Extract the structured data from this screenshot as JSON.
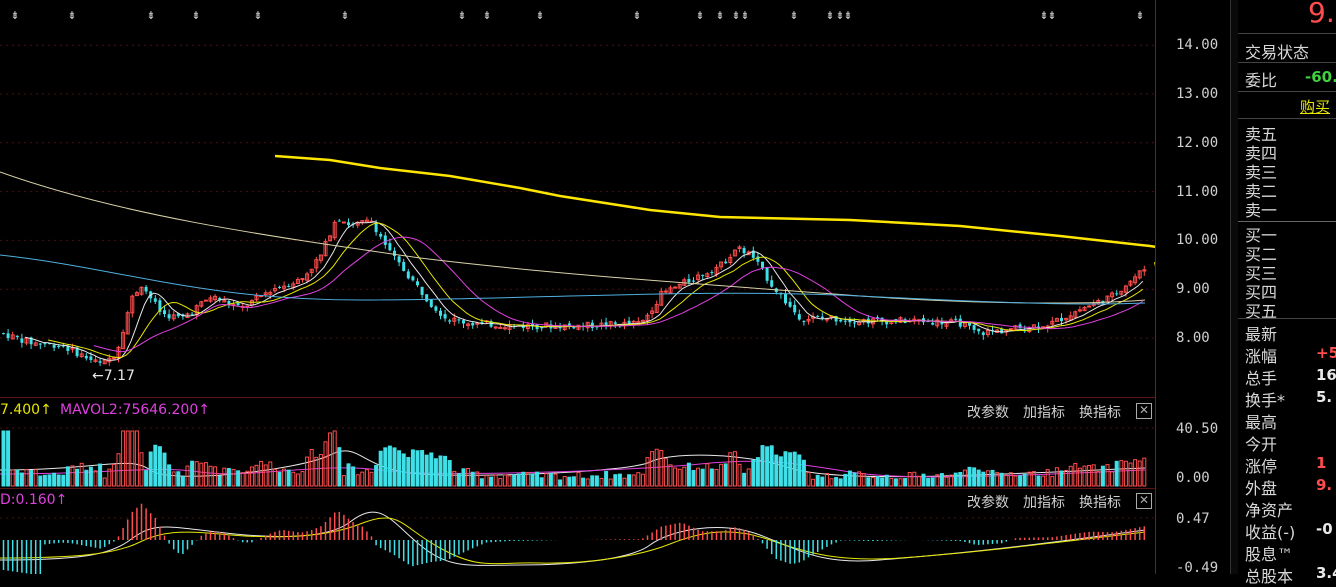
{
  "price_axis": {
    "ticks": [
      "14.00",
      "13.00",
      "12.00",
      "11.00",
      "10.00",
      "9.00",
      "8.00"
    ]
  },
  "vol_axis": {
    "ticks": [
      "40.50",
      "0.00"
    ]
  },
  "macd_axis": {
    "ticks": [
      "0.47",
      "-0.49"
    ]
  },
  "main_chart": {
    "low_marker": "7.17",
    "markers": "⇟"
  },
  "volume_pane": {
    "mavol1": "7.400",
    "mavol2": "MAVOL2:75646.200",
    "arrow": "↑",
    "buttons": {
      "params": "改参数",
      "add": "加指标",
      "swap": "换指标"
    },
    "close": "✕"
  },
  "macd_pane": {
    "label": "D:0.160",
    "arrow": "↑",
    "buttons": {
      "params": "改参数",
      "add": "加指标",
      "swap": "换指标"
    },
    "close": "✕"
  },
  "right_panel": {
    "price_partial": "9.",
    "trade_status": "交易状态",
    "wei_bi": "委比",
    "wei_bi_val": "-60.",
    "buy_btn": "购买",
    "sell_rows": [
      "卖五",
      "卖四",
      "卖三",
      "卖二",
      "卖一"
    ],
    "buy_rows": [
      "买一",
      "买二",
      "买三",
      "买四",
      "买五"
    ],
    "stats": [
      {
        "label": "最新",
        "val": ""
      },
      {
        "label": "涨幅",
        "val": "+5."
      },
      {
        "label": "总手",
        "val": "16."
      },
      {
        "label": "换手*",
        "val": "5."
      },
      {
        "label": "最高",
        "val": ""
      },
      {
        "label": "今开",
        "val": ""
      },
      {
        "label": "涨停",
        "val": "1"
      },
      {
        "label": "外盘",
        "val": "9."
      },
      {
        "label": "净资产",
        "val": ""
      },
      {
        "label": "收益(-)",
        "val": "-0"
      },
      {
        "label": "股息™",
        "val": ""
      },
      {
        "label": "总股本",
        "val": "3.4"
      }
    ]
  },
  "colors": {
    "up": "#ff4d4d",
    "down": "#3fe0e8",
    "ma_white": "#e8e8e8",
    "ma_yellow": "#e6e600",
    "ma_magenta": "#e040e0",
    "ma_long_cream": "#d9d2a8",
    "ma_long_blue": "#4fb0e0",
    "trend_line": "#ffe600"
  }
}
